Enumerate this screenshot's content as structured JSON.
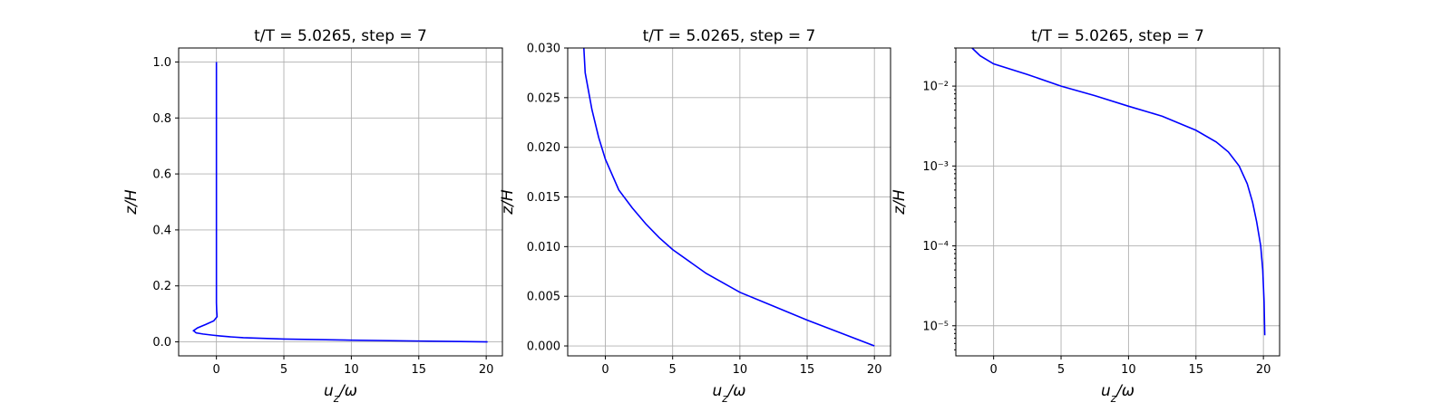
{
  "figure": {
    "bg_color": "#ffffff",
    "line_color": "#0000ff",
    "grid_color": "#b0b0b0"
  },
  "chart_data": [
    {
      "type": "line",
      "title": "t/T = 5.0265, step = 7",
      "xlabel": "u_z/ω",
      "ylabel": "z/H",
      "xscale": "linear",
      "yscale": "linear",
      "xlim": [
        -2.8,
        21.2
      ],
      "ylim": [
        -0.05,
        1.05
      ],
      "grid": true,
      "x_ticks": [
        0,
        5,
        10,
        15,
        20
      ],
      "x_tick_labels": [
        "0",
        "5",
        "10",
        "15",
        "20"
      ],
      "y_ticks": [
        0.0,
        0.2,
        0.4,
        0.6,
        0.8,
        1.0
      ],
      "y_tick_labels": [
        "0.0",
        "0.2",
        "0.4",
        "0.6",
        "0.8",
        "1.0"
      ],
      "series": [
        {
          "x": [
            20.1,
            15,
            10,
            5,
            2,
            1,
            0.3,
            -0.3,
            -1.0,
            -1.5,
            -1.7,
            -1.4,
            -0.8,
            -0.2,
            0.05,
            0.02,
            0,
            0,
            0,
            0,
            0,
            0,
            0
          ],
          "y": [
            0.0,
            0.003,
            0.006,
            0.01,
            0.015,
            0.018,
            0.021,
            0.024,
            0.028,
            0.032,
            0.04,
            0.05,
            0.062,
            0.075,
            0.09,
            0.11,
            0.14,
            0.2,
            0.3,
            0.5,
            0.7,
            0.9,
            1.0
          ]
        }
      ]
    },
    {
      "type": "line",
      "title": "t/T = 5.0265, step = 7",
      "xlabel": "u_z/ω",
      "ylabel": "z/H",
      "xscale": "linear",
      "yscale": "linear",
      "xlim": [
        -2.8,
        21.2
      ],
      "ylim": [
        -0.001,
        0.03
      ],
      "grid": true,
      "x_ticks": [
        0,
        5,
        10,
        15,
        20
      ],
      "x_tick_labels": [
        "0",
        "5",
        "10",
        "15",
        "20"
      ],
      "y_ticks": [
        0.0,
        0.005,
        0.01,
        0.015,
        0.02,
        0.025,
        0.03
      ],
      "y_tick_labels": [
        "0.000",
        "0.005",
        "0.010",
        "0.015",
        "0.020",
        "0.025",
        "0.030"
      ],
      "series": [
        {
          "x": [
            20.0,
            17.5,
            15.0,
            12.5,
            10.0,
            7.5,
            5.0,
            4.0,
            3.0,
            2.0,
            1.0,
            0.0,
            -0.5,
            -1.0,
            -1.5,
            -1.6
          ],
          "y": [
            0.0,
            0.0013,
            0.0026,
            0.004,
            0.0054,
            0.0073,
            0.0097,
            0.0109,
            0.0123,
            0.0139,
            0.0157,
            0.0188,
            0.021,
            0.0238,
            0.0275,
            0.03
          ]
        }
      ]
    },
    {
      "type": "line",
      "title": "t/T = 5.0265, step = 7",
      "xlabel": "u_z/ω",
      "ylabel": "z/H",
      "xscale": "linear",
      "yscale": "log",
      "xlim": [
        -2.8,
        21.2
      ],
      "ylim": [
        4.2e-06,
        0.03
      ],
      "grid": true,
      "x_ticks": [
        0,
        5,
        10,
        15,
        20
      ],
      "x_tick_labels": [
        "0",
        "5",
        "10",
        "15",
        "20"
      ],
      "y_ticks": [
        1e-05,
        0.0001,
        0.001,
        0.01
      ],
      "y_tick_labels": [
        "10⁻⁵",
        "10⁻⁴",
        "10⁻³",
        "10⁻²"
      ],
      "series": [
        {
          "x": [
            20.1,
            20.05,
            19.95,
            19.8,
            19.5,
            19.2,
            18.8,
            18.2,
            17.4,
            16.5,
            15.0,
            12.5,
            10.0,
            7.5,
            5.0,
            2.5,
            0.0,
            -1.0,
            -1.6
          ],
          "y": [
            7.6e-06,
            2e-05,
            5e-05,
            0.0001,
            0.0002,
            0.00035,
            0.0006,
            0.001,
            0.0015,
            0.002,
            0.0028,
            0.0042,
            0.0056,
            0.0076,
            0.01,
            0.014,
            0.019,
            0.024,
            0.03
          ]
        }
      ]
    }
  ]
}
